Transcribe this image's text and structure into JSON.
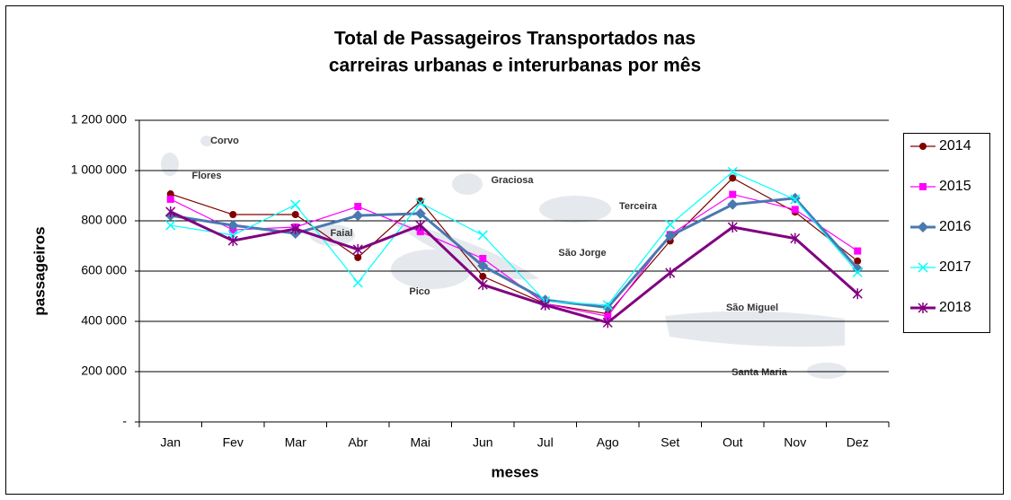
{
  "chart_data": {
    "type": "line",
    "title": [
      "Total de Passageiros Transportados nas",
      "carreiras urbanas e interurbanas por mês"
    ],
    "xlabel": "meses",
    "ylabel": "passageiros",
    "categories": [
      "Jan",
      "Fev",
      "Mar",
      "Abr",
      "Mai",
      "Jun",
      "Jul",
      "Ago",
      "Set",
      "Out",
      "Nov",
      "Dez"
    ],
    "ylim": [
      0,
      1200000
    ],
    "yticks": [
      {
        "value": 0,
        "label": "-"
      },
      {
        "value": 200000,
        "label": "200 000"
      },
      {
        "value": 400000,
        "label": "400 000"
      },
      {
        "value": 600000,
        "label": "600 000"
      },
      {
        "value": 800000,
        "label": "800 000"
      },
      {
        "value": 1000000,
        "label": "1 000 000"
      },
      {
        "value": 1200000,
        "label": "1 200 000"
      }
    ],
    "grid": true,
    "legend": "right",
    "map_labels": [
      "Corvo",
      "Flores",
      "Graciosa",
      "Terceira",
      "São Jorge",
      "Faial",
      "Pico",
      "São Miguel",
      "Santa Maria"
    ],
    "series": [
      {
        "name": "2014",
        "color": "#800000",
        "marker": "circle",
        "values": [
          907000,
          825000,
          825000,
          654000,
          879000,
          579000,
          470000,
          430000,
          720000,
          970000,
          835000,
          640000
        ]
      },
      {
        "name": "2015",
        "color": "#ff00ff",
        "marker": "square",
        "values": [
          886000,
          764000,
          775000,
          857000,
          757000,
          650000,
          470000,
          420000,
          745000,
          905000,
          845000,
          680000
        ]
      },
      {
        "name": "2016",
        "color": "#4a78b0",
        "marker": "diamond",
        "values": [
          821000,
          782000,
          750000,
          821000,
          829000,
          621000,
          485000,
          455000,
          740000,
          865000,
          890000,
          610000
        ]
      },
      {
        "name": "2017",
        "color": "#00ffff",
        "marker": "x",
        "values": [
          782000,
          743000,
          864000,
          554000,
          871000,
          743000,
          480000,
          465000,
          785000,
          995000,
          885000,
          595000
        ]
      },
      {
        "name": "2018",
        "color": "#800080",
        "marker": "star",
        "values": [
          836000,
          721000,
          768000,
          686000,
          782000,
          546000,
          465000,
          395000,
          593000,
          775000,
          730000,
          510000
        ]
      }
    ]
  }
}
